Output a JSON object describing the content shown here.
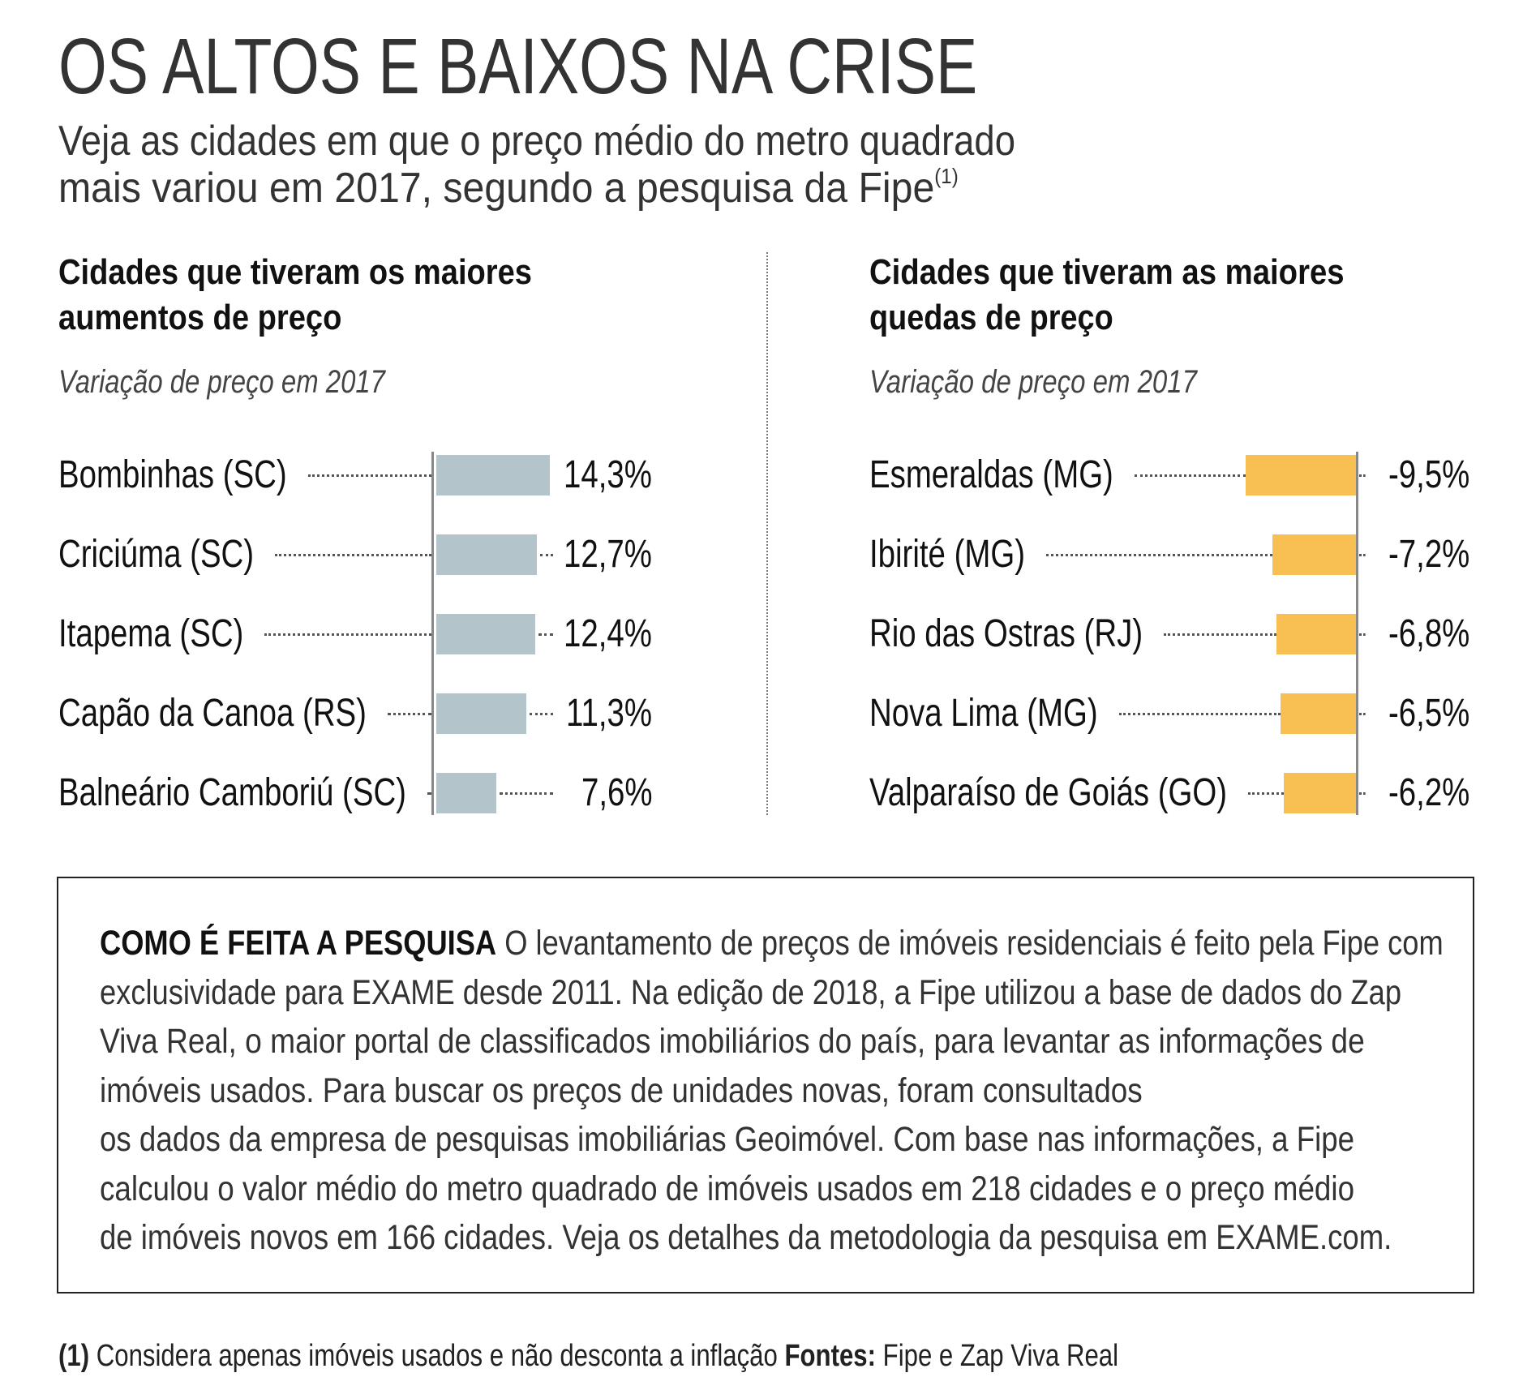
{
  "header": {
    "title": "OS ALTOS E BAIXOS NA CRISE",
    "subtitle_line1": "Veja as cidades em que o preço médio do metro quadrado",
    "subtitle_line2": "mais variou em 2017, segundo a pesquisa da Fipe",
    "subtitle_note": "(1)"
  },
  "chart_data": [
    {
      "type": "bar",
      "orientation": "horizontal",
      "title": "Cidades que tiveram os maiores aumentos de preço",
      "title_line1": "Cidades que tiveram os maiores",
      "title_line2": "aumentos de preço",
      "subtitle": "Variação de preço em 2017",
      "categories": [
        "Bombinhas (SC)",
        "Criciúma (SC)",
        "Itapema (SC)",
        "Capão da Canoa (RS)",
        "Balneário Camboriú (SC)"
      ],
      "values": [
        14.3,
        12.7,
        12.4,
        11.3,
        7.6
      ],
      "labels": [
        "14,3%",
        "12,7%",
        "12,4%",
        "11,3%",
        "7,6%"
      ],
      "unit": "%",
      "color": "#b3c4cb"
    },
    {
      "type": "bar",
      "orientation": "horizontal",
      "title": "Cidades que tiveram as maiores quedas de preço",
      "title_line1": "Cidades que tiveram as maiores",
      "title_line2": "quedas de preço",
      "subtitle": "Variação de preço em 2017",
      "categories": [
        "Esmeraldas (MG)",
        "Ibirité (MG)",
        "Rio das Ostras (RJ)",
        "Nova Lima (MG)",
        "Valparaíso de Goiás (GO)"
      ],
      "values": [
        -9.5,
        -7.2,
        -6.8,
        -6.5,
        -6.2
      ],
      "labels": [
        "-9,5%",
        "-7,2%",
        "-6,8%",
        "-6,5%",
        "-6,2%"
      ],
      "unit": "%",
      "color": "#f8c052"
    }
  ],
  "methodology": {
    "heading": "COMO É FEITA A PESQUISA",
    "lines": [
      " O levantamento de preços de imóveis residenciais é feito pela Fipe com",
      "exclusividade para EXAME desde 2011. Na edição de 2018, a Fipe utilizou a base de dados do Zap",
      "Viva Real, o maior portal de classificados imobiliários do país, para levantar as informações de",
      "imóveis usados. Para buscar os preços de unidades novas, foram consultados",
      "os dados da empresa de pesquisas imobiliárias Geoimóvel. Com base nas informações, a Fipe",
      "calculou o valor médio do metro quadrado de imóveis usados em 218 cidades e o preço médio",
      "de imóveis novos em 166 cidades. Veja os detalhes da metodologia da pesquisa em EXAME.com."
    ]
  },
  "footnote": {
    "marker": "(1)",
    "text": " Considera apenas imóveis usados e não desconta a inflação ",
    "sources_label": "Fontes:",
    "sources": " Fipe e Zap Viva Real"
  }
}
